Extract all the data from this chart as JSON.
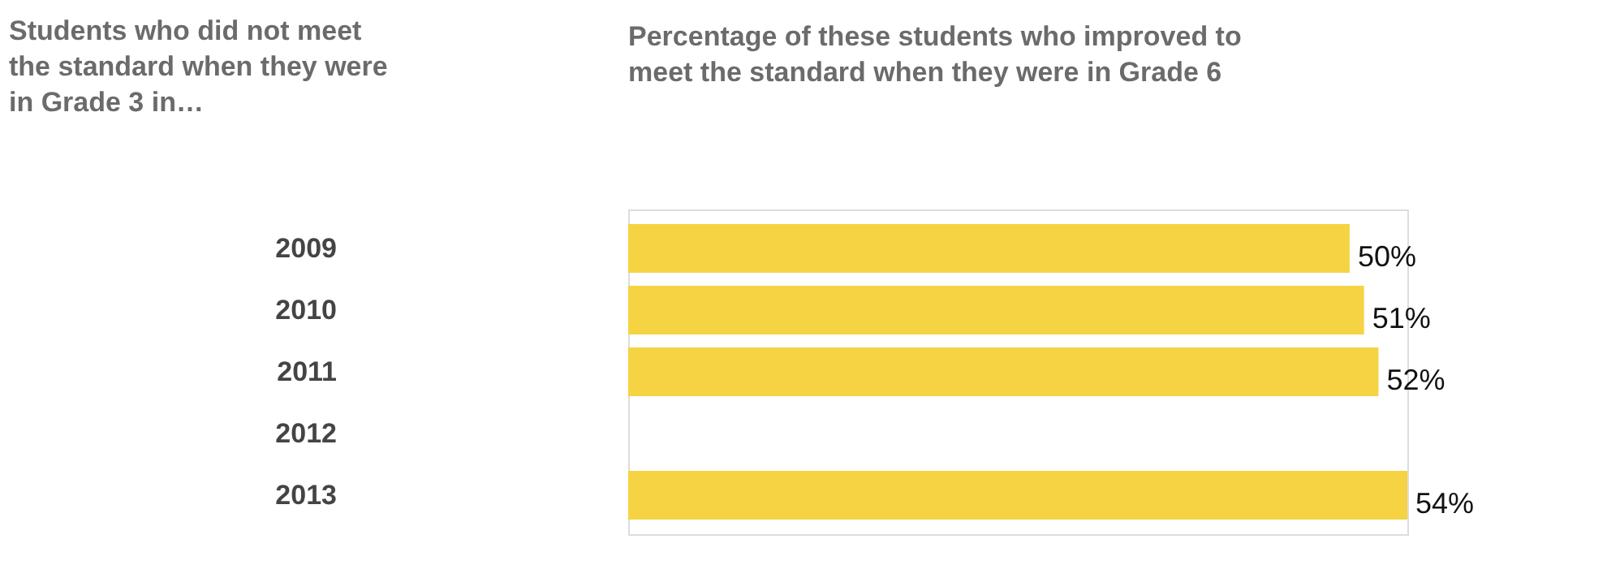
{
  "chart_data": {
    "type": "bar",
    "orientation": "horizontal",
    "title": "Percentage of these students who improved to meet the standard when they were in Grade 6",
    "ylabel": "Students who did not meet the standard when they were in Grade 3 in…",
    "categories": [
      "2009",
      "2010",
      "2011",
      "2012",
      "2013"
    ],
    "values": [
      50,
      51,
      52,
      null,
      54
    ],
    "color": "#f5d342",
    "value_labels": [
      "50%",
      "51%",
      "52%",
      null,
      "54%"
    ]
  }
}
